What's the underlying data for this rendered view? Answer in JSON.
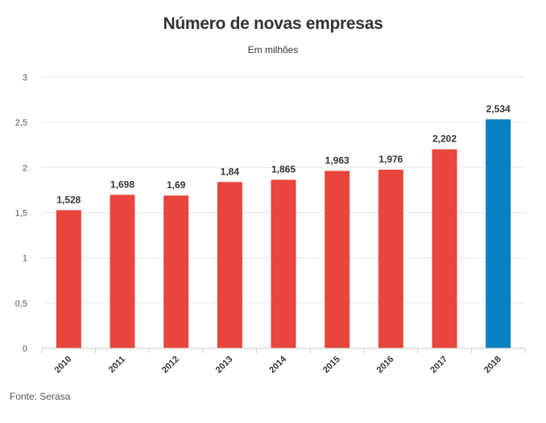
{
  "chart_data": {
    "type": "bar",
    "title": "Número de novas empresas",
    "subtitle": "Em milhões",
    "categories": [
      "2010",
      "2011",
      "2012",
      "2013",
      "2014",
      "2015",
      "2016",
      "2017",
      "2018"
    ],
    "values": [
      1.528,
      1.698,
      1.69,
      1.84,
      1.865,
      1.963,
      1.976,
      2.202,
      2.534
    ],
    "value_labels": [
      "1,528",
      "1,698",
      "1,69",
      "1,84",
      "1,865",
      "1,963",
      "1,976",
      "2,202",
      "2,534"
    ],
    "ylim": [
      0,
      3
    ],
    "yticks": [
      0,
      0.5,
      1,
      1.5,
      2,
      2.5,
      3
    ],
    "ytick_labels": [
      "0",
      "0,5",
      "1",
      "1,5",
      "2",
      "2,5",
      "3"
    ],
    "xlabel": "",
    "ylabel": "",
    "grid": true,
    "legend": "none",
    "bar_colors": [
      "#e8453c",
      "#e8453c",
      "#e8453c",
      "#e8453c",
      "#e8453c",
      "#e8453c",
      "#e8453c",
      "#e8453c",
      "#0a80c2"
    ]
  },
  "source": "Fonte: Serasa"
}
